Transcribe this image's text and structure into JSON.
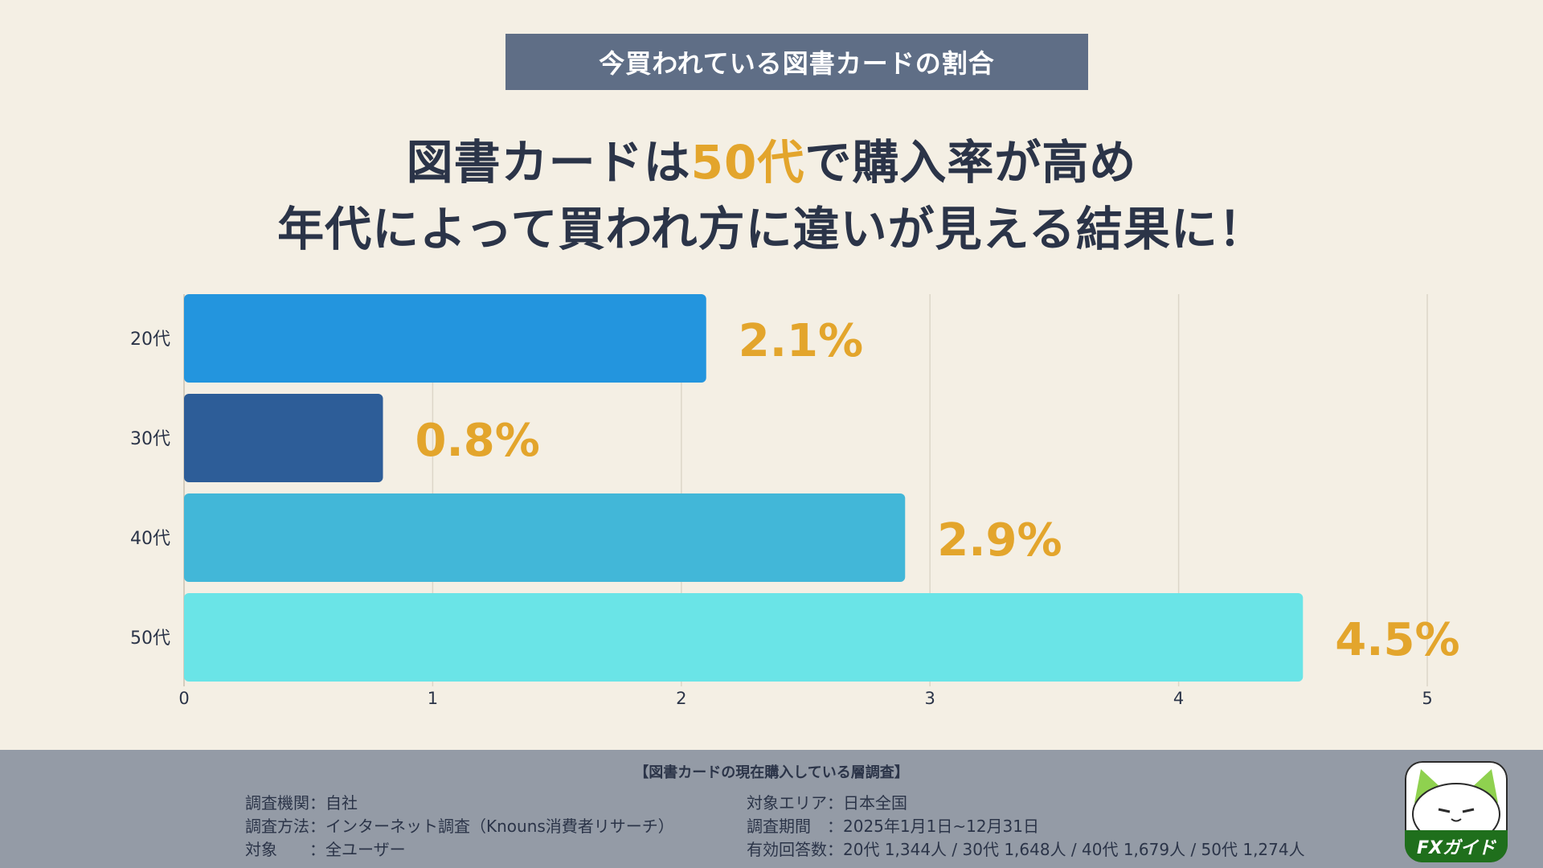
{
  "header": {
    "banner": "今買われている図書カードの割合",
    "headline_line1_pre": "図書カードは",
    "headline_line1_highlight": "50代",
    "headline_line1_post": "で購入率が高め",
    "headline_line2": "年代によって買われ方に違いが見える結果に！"
  },
  "chart_data": {
    "type": "bar",
    "orientation": "horizontal",
    "categories": [
      "20代",
      "30代",
      "40代",
      "50代"
    ],
    "values": [
      2.1,
      0.8,
      2.9,
      4.5
    ],
    "value_labels": [
      "2.1%",
      "0.8%",
      "2.9%",
      "4.5%"
    ],
    "bar_colors": [
      "#2395de",
      "#2d5d98",
      "#42b7d8",
      "#6ae4e7"
    ],
    "label_color": "#e3a52c",
    "xlim": [
      0,
      5
    ],
    "xticks": [
      "0",
      "1",
      "2",
      "3",
      "4",
      "5"
    ],
    "grid": true,
    "title": "",
    "xlabel": "",
    "ylabel": ""
  },
  "footer": {
    "survey_title": "【図書カードの現在購入している層調査】",
    "left_lines": [
      "調査機関：自社",
      "調査方法：インターネット調査（Knouns消費者リサーチ）",
      "対象　　：全ユーザー"
    ],
    "right_lines": [
      "対象エリア：日本全国",
      "調査期間　：2025年1月1日~12月31日",
      "有効回答数：20代 1,344人 / 30代 1,648人 / 40代 1,679人 / 50代 1,274人"
    ],
    "logo_text": "FXガイド"
  }
}
